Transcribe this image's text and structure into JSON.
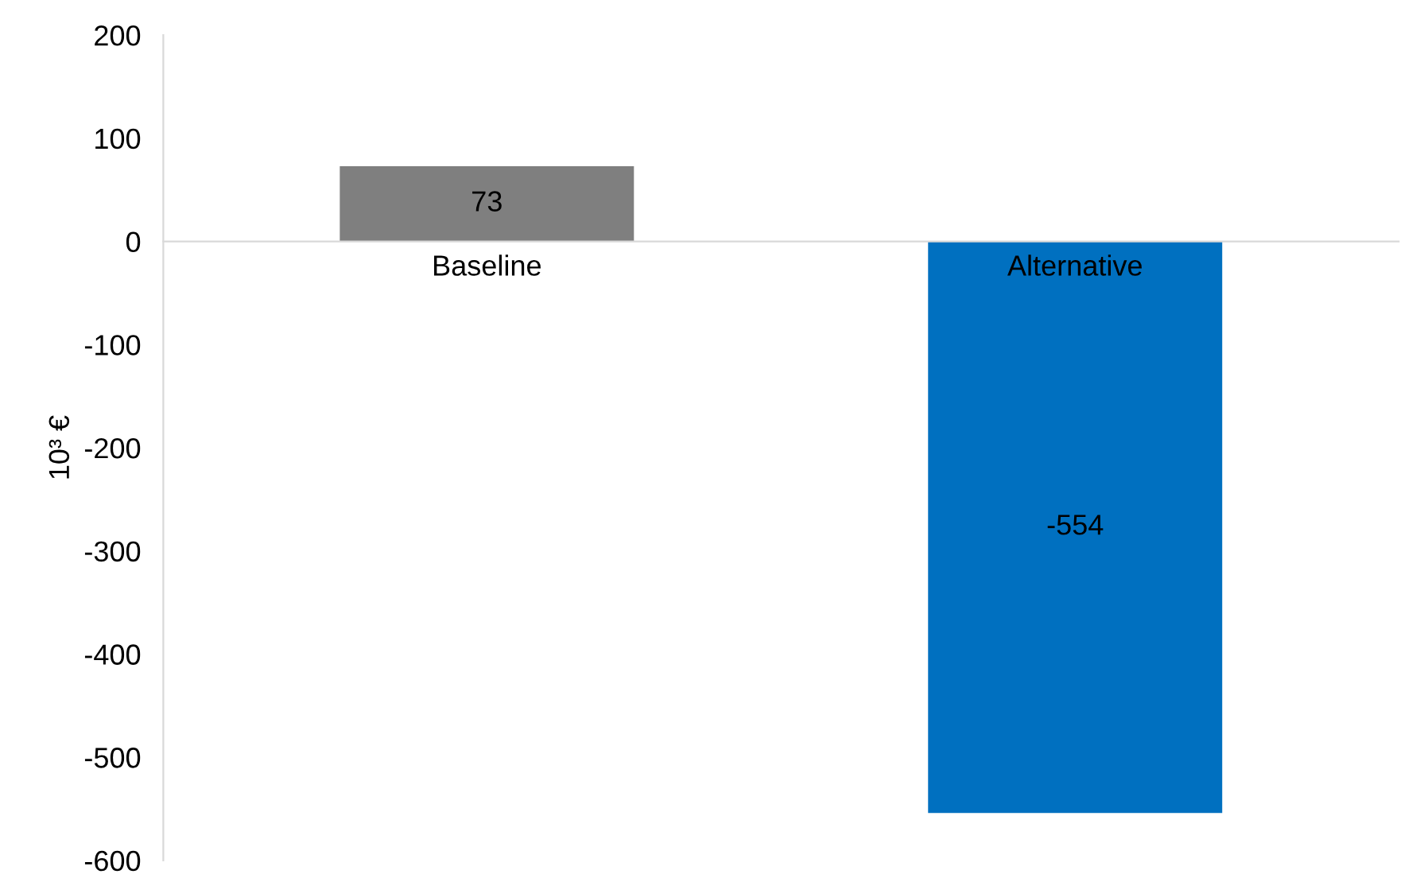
{
  "chart_data": {
    "type": "bar",
    "ylabel": "10³ €",
    "categories": [
      "Baseline",
      "Alternative"
    ],
    "values": [
      73,
      -554
    ],
    "colors": [
      "#7f7f7f",
      "#0070c0"
    ],
    "ylim": [
      -600,
      200
    ],
    "yticks": [
      -600,
      -500,
      -400,
      -300,
      -200,
      -100,
      0,
      100,
      200
    ],
    "data_labels": true
  }
}
